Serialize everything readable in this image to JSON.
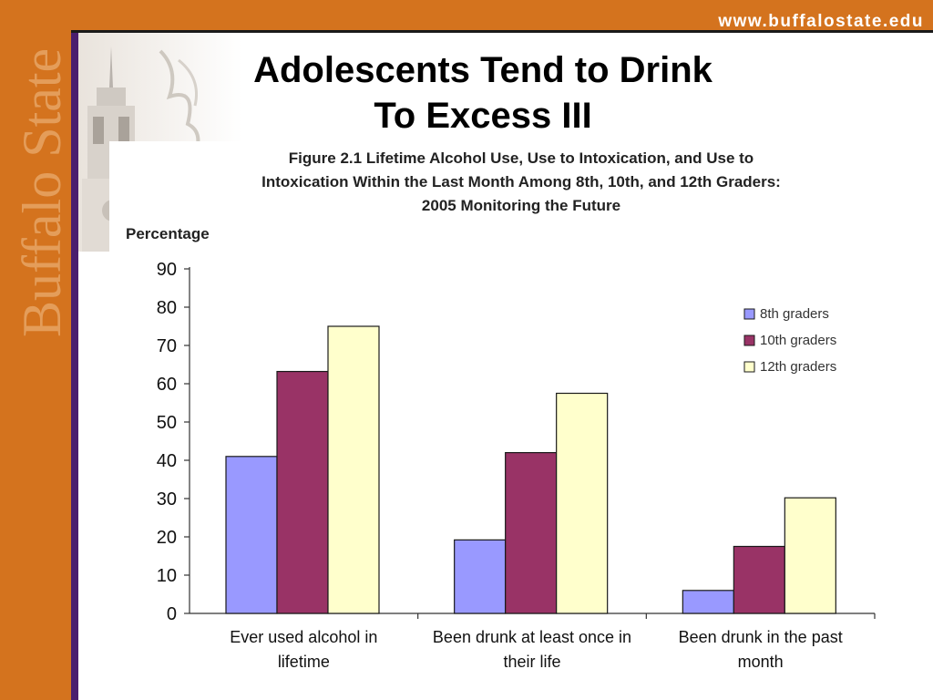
{
  "header": {
    "url": "www.buffalostate.edu"
  },
  "branding": {
    "vertical_logo": "Buffalo State",
    "accent": "#d4731e"
  },
  "slide": {
    "title_line1": "Adolescents Tend to Drink",
    "title_line2": "To Excess III"
  },
  "chart_data": {
    "type": "bar",
    "title_lines": [
      "Figure 2.1 Lifetime Alcohol Use, Use to Intoxication, and Use to",
      "Intoxication Within the Last Month Among 8th, 10th, and 12th Graders:",
      "2005 Monitoring the Future"
    ],
    "ylabel": "Percentage",
    "xlabel": "",
    "ylim": [
      0,
      90
    ],
    "yticks": [
      0,
      10,
      20,
      30,
      40,
      50,
      60,
      70,
      80,
      90
    ],
    "categories": [
      [
        "Ever used alcohol in",
        "lifetime"
      ],
      [
        "Been drunk at least once in",
        "their life"
      ],
      [
        "Been drunk in the past",
        "month"
      ]
    ],
    "series": [
      {
        "name": "8th graders",
        "color": "#9999ff",
        "values": [
          41,
          19.2,
          6
        ]
      },
      {
        "name": "10th graders",
        "color": "#993366",
        "values": [
          63.2,
          42,
          17.5
        ]
      },
      {
        "name": "12th graders",
        "color": "#ffffcc",
        "values": [
          75,
          57.5,
          30.2
        ]
      }
    ],
    "legend_position": "top-right",
    "grid": false
  }
}
